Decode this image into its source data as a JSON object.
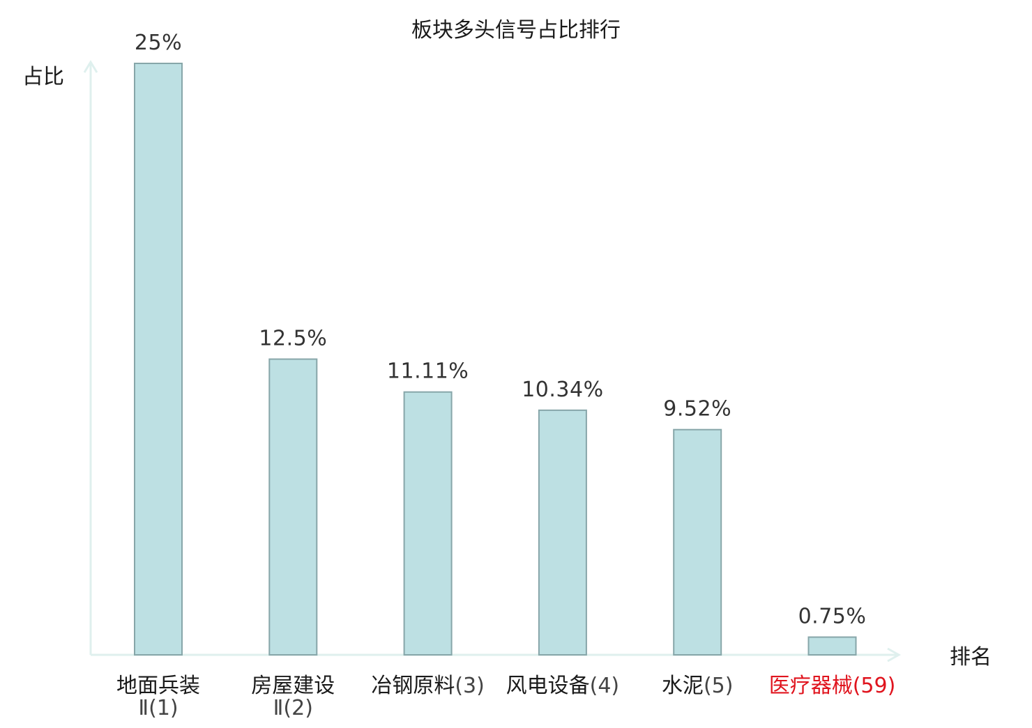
{
  "chart_data": {
    "type": "bar",
    "title": "板块多头信号占比排行",
    "ylabel": "占比",
    "xlabel": "排名",
    "ylim": [
      0,
      25
    ],
    "grid": false,
    "legend": "none",
    "bar_color": "#bde0e3",
    "bar_stroke": "#87a6a9",
    "axis_color": "#dff0ee",
    "highlight_color": "#e0141e",
    "categories": [
      {
        "name_lines": [
          "地面兵装",
          "Ⅱ"
        ],
        "rank": "(1)",
        "highlight": false
      },
      {
        "name_lines": [
          "房屋建设",
          "Ⅱ"
        ],
        "rank": "(2)",
        "highlight": false
      },
      {
        "name_lines": [
          "冶钢原料"
        ],
        "rank": "(3)",
        "highlight": false
      },
      {
        "name_lines": [
          "风电设备"
        ],
        "rank": "(4)",
        "highlight": false
      },
      {
        "name_lines": [
          "水泥"
        ],
        "rank": "(5)",
        "highlight": false
      },
      {
        "name_lines": [
          "医疗器械"
        ],
        "rank": "(59)",
        "highlight": true
      }
    ],
    "values": [
      25,
      12.5,
      11.11,
      10.34,
      9.52,
      0.75
    ],
    "value_labels": [
      "25%",
      "12.5%",
      "11.11%",
      "10.34%",
      "9.52%",
      "0.75%"
    ]
  }
}
